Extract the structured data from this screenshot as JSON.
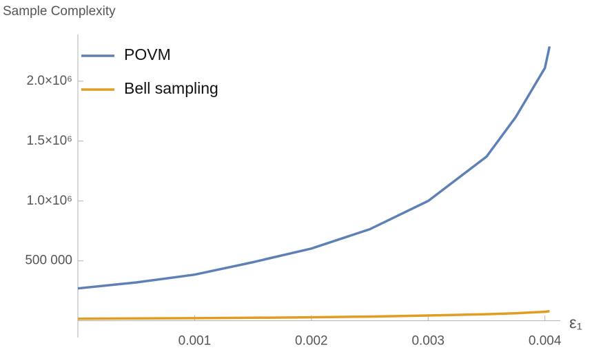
{
  "chart_data": {
    "type": "line",
    "y_label": "Sample  Complexity",
    "x_label": "ε₁",
    "x": [
      0,
      0.0005,
      0.001,
      0.0015,
      0.002,
      0.0025,
      0.003,
      0.0035,
      0.00375,
      0.004,
      0.00404
    ],
    "series": [
      {
        "name": "POVM",
        "color": "#5e81b5",
        "values": [
          270000,
          320000,
          385000,
          489000,
          603000,
          764000,
          1000000,
          1370000,
          1700000,
          2110000,
          2290000
        ]
      },
      {
        "name": "Bell sampling",
        "color": "#e19c24",
        "values": [
          17000,
          19500,
          22000,
          25000,
          29000,
          35000,
          44000,
          55000,
          63000,
          75000,
          80000
        ]
      }
    ],
    "xlim": [
      0,
      0.00425
    ],
    "ylim": [
      -140000,
      2390000
    ],
    "xticks": [
      0.001,
      0.002,
      0.003,
      0.004
    ],
    "yticks": [
      {
        "value": 500000,
        "label": "500 000"
      },
      {
        "value": 1000000,
        "label": "1.0×10⁶"
      },
      {
        "value": 1500000,
        "label": "1.5×10⁶"
      },
      {
        "value": 2000000,
        "label": "2.0×10⁶"
      }
    ],
    "legend": "upper-left",
    "grid": false
  }
}
